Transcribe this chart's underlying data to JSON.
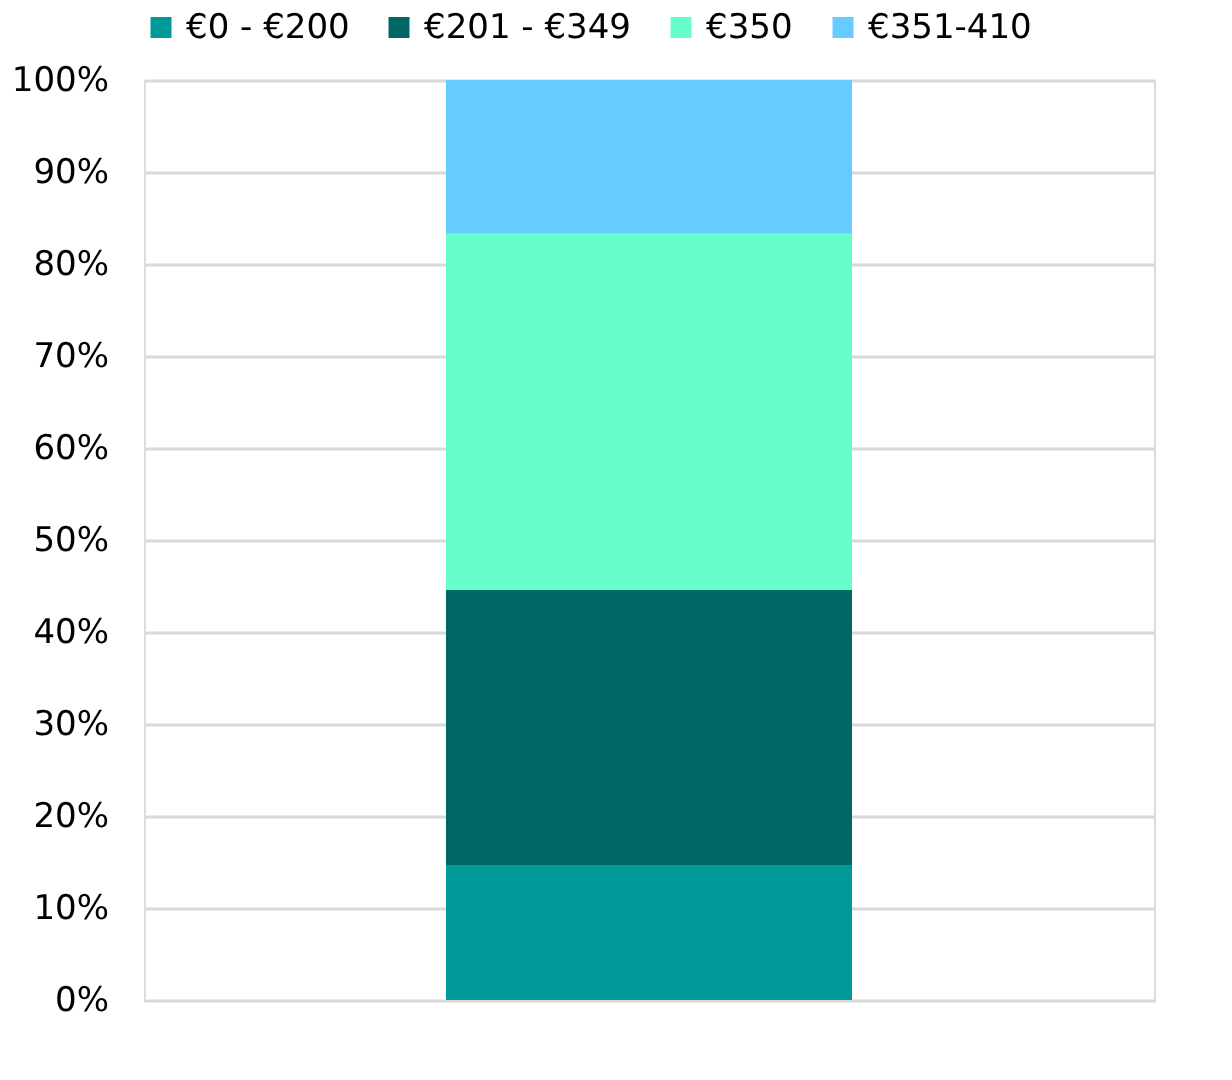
{
  "chart_data": {
    "type": "bar",
    "stacked": true,
    "categories": [
      null
    ],
    "series": [
      {
        "name": "€0 - €200",
        "color": "#009999",
        "values": [
          14.6
        ]
      },
      {
        "name": "€201 - €349",
        "color": "#006666",
        "values": [
          30.0
        ]
      },
      {
        "name": "€350",
        "color": "#66ffcc",
        "values": [
          38.7
        ]
      },
      {
        "name": "€351-410",
        "color": "#66ccff",
        "values": [
          16.7
        ]
      }
    ],
    "ylim": [
      0,
      100
    ],
    "yticks": [
      {
        "value": 0,
        "label": "0%"
      },
      {
        "value": 10,
        "label": "10%"
      },
      {
        "value": 20,
        "label": "20%"
      },
      {
        "value": 30,
        "label": "30%"
      },
      {
        "value": 40,
        "label": "40%"
      },
      {
        "value": 50,
        "label": "50%"
      },
      {
        "value": 60,
        "label": "60%"
      },
      {
        "value": 70,
        "label": "70%"
      },
      {
        "value": 80,
        "label": "80%"
      },
      {
        "value": 90,
        "label": "90%"
      },
      {
        "value": 100,
        "label": "100%"
      }
    ],
    "grid": "y",
    "legend": "top",
    "tick_labels": "y"
  }
}
